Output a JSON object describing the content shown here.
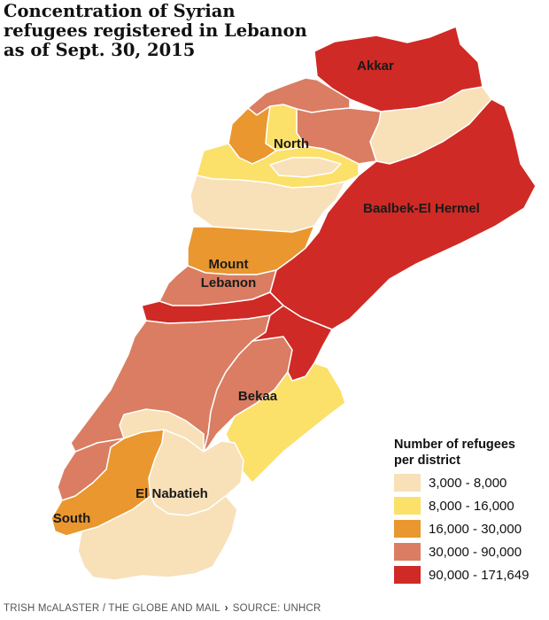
{
  "title": {
    "line1": "Concentration of Syrian",
    "line2": "refugees registered in Lebanon",
    "line3": "as of Sept. 30, 2015"
  },
  "colors": {
    "c1": "#f8e0b8",
    "c2": "#fbe06a",
    "c3": "#e9972e",
    "c4": "#da7d62",
    "c5": "#cf2a25",
    "border": "#ffffff",
    "text": "#1a1a1a"
  },
  "regions": {
    "akkar": "Akkar",
    "north": "North",
    "baalbek": "Baalbek-El Hermel",
    "mount_lebanon_1": "Mount",
    "mount_lebanon_2": "Lebanon",
    "bekaa": "Bekaa",
    "nabatieh": "El Nabatieh",
    "south": "South"
  },
  "legend": {
    "title_line1": "Number of refugees",
    "title_line2": "per district",
    "items": [
      {
        "label": "3,000 - 8,000",
        "color": "#f8e0b8"
      },
      {
        "label": "8,000 - 16,000",
        "color": "#fbe06a"
      },
      {
        "label": "16,000 - 30,000",
        "color": "#e9972e"
      },
      {
        "label": "30,000 - 90,000",
        "color": "#da7d62"
      },
      {
        "label": "90,000 - 171,649",
        "color": "#cf2a25"
      }
    ]
  },
  "credit": {
    "author": "TRISH McALASTER / THE GLOBE AND MAIL",
    "separator": "›",
    "source": "SOURCE: UNHCR"
  }
}
